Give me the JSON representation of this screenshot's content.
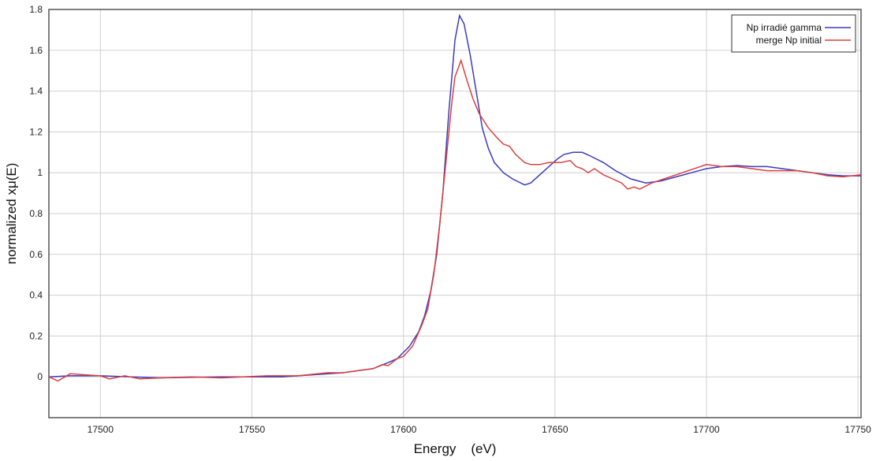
{
  "chart_data": {
    "type": "line",
    "title": "",
    "xlabel": "Energy    (eV)",
    "ylabel": "normalized xμ(E)",
    "xlim": [
      17483,
      17751
    ],
    "ylim": [
      -0.2,
      1.8
    ],
    "xticks": [
      17500,
      17550,
      17600,
      17650,
      17700,
      17750
    ],
    "yticks": [
      0,
      0.2,
      0.4,
      0.6,
      0.8,
      1,
      1.2,
      1.4,
      1.6,
      1.8
    ],
    "grid": true,
    "legend_position": "top-right",
    "series": [
      {
        "name": "Np irradié gamma",
        "color": "#3b3bbf",
        "x": [
          17483,
          17490,
          17500,
          17510,
          17520,
          17540,
          17560,
          17570,
          17580,
          17590,
          17595,
          17598,
          17600,
          17602,
          17605,
          17607,
          17609,
          17611,
          17613,
          17615,
          17617,
          17618.5,
          17620,
          17622,
          17624,
          17626,
          17628,
          17630,
          17633,
          17636,
          17640,
          17642,
          17645,
          17648,
          17651,
          17653,
          17656,
          17659,
          17662,
          17666,
          17670,
          17675,
          17680,
          17685,
          17690,
          17695,
          17700,
          17705,
          17710,
          17715,
          17720,
          17725,
          17730,
          17735,
          17740,
          17745,
          17751
        ],
        "y": [
          0,
          0.005,
          0.005,
          0,
          -0.005,
          0,
          0,
          0.01,
          0.02,
          0.04,
          0.07,
          0.09,
          0.12,
          0.15,
          0.22,
          0.3,
          0.42,
          0.6,
          0.9,
          1.3,
          1.65,
          1.77,
          1.73,
          1.58,
          1.4,
          1.22,
          1.12,
          1.05,
          1.0,
          0.97,
          0.94,
          0.95,
          0.99,
          1.03,
          1.07,
          1.09,
          1.1,
          1.1,
          1.08,
          1.05,
          1.01,
          0.97,
          0.95,
          0.96,
          0.98,
          1.0,
          1.02,
          1.03,
          1.035,
          1.03,
          1.03,
          1.02,
          1.01,
          1.0,
          0.99,
          0.985,
          0.985
        ]
      },
      {
        "name": "merge Np initial",
        "color": "#d94040",
        "x": [
          17483,
          17486,
          17490,
          17495,
          17500,
          17503,
          17508,
          17513,
          17520,
          17530,
          17540,
          17555,
          17565,
          17575,
          17580,
          17590,
          17593,
          17595,
          17598,
          17600,
          17603,
          17606,
          17608,
          17610,
          17612,
          17614,
          17616,
          17617,
          17619,
          17621,
          17623,
          17625,
          17628,
          17631,
          17633,
          17635,
          17637,
          17640,
          17642,
          17645,
          17648,
          17652,
          17655,
          17657,
          17659,
          17661,
          17663,
          17666,
          17669,
          17672,
          17674,
          17676,
          17678,
          17682,
          17686,
          17690,
          17694,
          17698,
          17700,
          17705,
          17710,
          17715,
          17720,
          17725,
          17730,
          17735,
          17740,
          17745,
          17751
        ],
        "y": [
          0,
          -0.02,
          0.015,
          0.01,
          0.005,
          -0.01,
          0.005,
          -0.01,
          -0.005,
          0,
          -0.005,
          0.005,
          0.005,
          0.02,
          0.02,
          0.04,
          0.06,
          0.055,
          0.09,
          0.1,
          0.15,
          0.25,
          0.33,
          0.5,
          0.75,
          1.05,
          1.35,
          1.47,
          1.55,
          1.45,
          1.36,
          1.29,
          1.22,
          1.17,
          1.14,
          1.13,
          1.09,
          1.05,
          1.04,
          1.04,
          1.05,
          1.05,
          1.06,
          1.03,
          1.02,
          1.0,
          1.02,
          0.99,
          0.97,
          0.95,
          0.92,
          0.93,
          0.92,
          0.95,
          0.97,
          0.99,
          1.01,
          1.03,
          1.04,
          1.03,
          1.03,
          1.02,
          1.01,
          1.01,
          1.01,
          1.0,
          0.985,
          0.98,
          0.99
        ]
      }
    ]
  }
}
